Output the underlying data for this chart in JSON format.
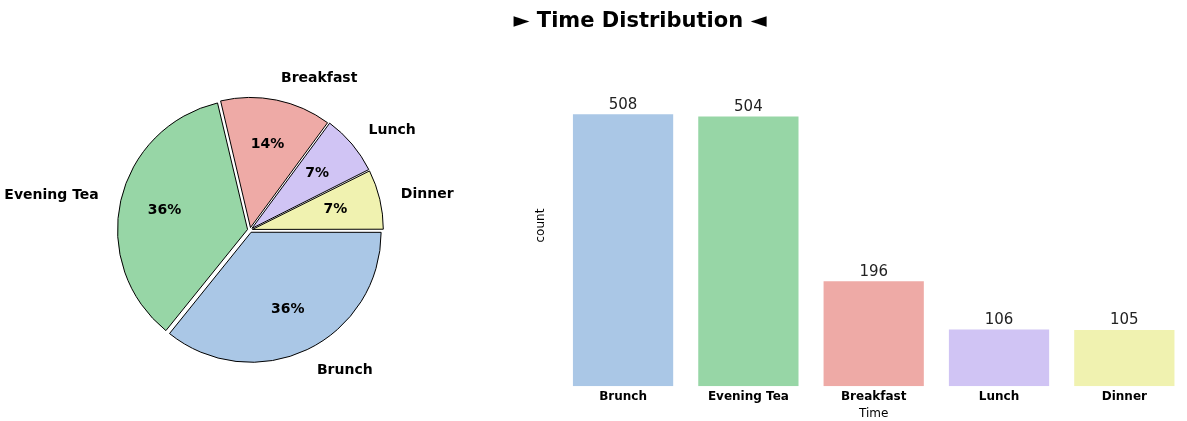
{
  "chart_data": [
    {
      "type": "pie",
      "categories": [
        "Brunch",
        "Evening Tea",
        "Breakfast",
        "Lunch",
        "Dinner"
      ],
      "values": [
        35.8,
        35.5,
        13.8,
        7.5,
        7.4
      ],
      "value_labels": [
        "36%",
        "36%",
        "14%",
        "7%",
        "7%"
      ],
      "colors": [
        "#aac7e6",
        "#97d6a6",
        "#eeaaa6",
        "#d0c4f4",
        "#f0f2b0"
      ],
      "legend": false
    },
    {
      "type": "bar",
      "title": "► Time Distribution ◄",
      "categories": [
        "Brunch",
        "Evening Tea",
        "Breakfast",
        "Lunch",
        "Dinner"
      ],
      "values": [
        508,
        504,
        196,
        106,
        105
      ],
      "colors": [
        "#aac7e6",
        "#97d6a6",
        "#eeaaa6",
        "#d0c4f4",
        "#f0f2b0"
      ],
      "xlabel": "Time",
      "ylabel": "count",
      "data_labels": true,
      "tick_labels": "x",
      "grid": false,
      "legend": false
    }
  ]
}
